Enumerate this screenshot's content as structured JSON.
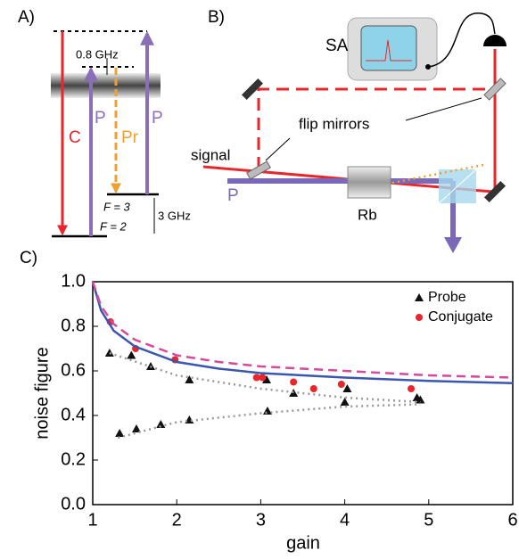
{
  "panel_a": {
    "label": "A)",
    "spacing": "0.8 GHz",
    "coupling": "C",
    "pump_left": "P",
    "probe": "Pr",
    "pump_right": "P",
    "upper_level": "F = 3",
    "lower_level": "F = 2",
    "splitting": "3 GHz"
  },
  "panel_b": {
    "label": "B)",
    "analyzer": "SA",
    "mirrors": "flip mirrors",
    "signal": "signal",
    "pump": "P",
    "cell": "Rb"
  },
  "chart_data": {
    "type": "scatter",
    "panel_label": "C)",
    "x_label": "gain",
    "y_label": "noise figure",
    "xlim": [
      1,
      6
    ],
    "xticks": [
      1,
      2,
      3,
      4,
      5,
      6
    ],
    "ylim": [
      0,
      1
    ],
    "yticks": [
      {
        "value": 0,
        "label": "0.0"
      },
      0.2,
      0.4,
      0.6,
      0.8,
      {
        "value": 1,
        "label": "1.0"
      }
    ],
    "legend": "top-right",
    "series": [
      {
        "name": "Probe",
        "color": "#111111",
        "marker": "triangle",
        "x": [
          1.2,
          1.46,
          1.69,
          2.15,
          3.07,
          3.39,
          4.03,
          4.0,
          4.86,
          4.9,
          1.32,
          1.52,
          1.81,
          2.15,
          3.08
        ],
        "values": [
          0.68,
          0.67,
          0.62,
          0.56,
          0.56,
          0.5,
          0.52,
          0.46,
          0.48,
          0.47,
          0.32,
          0.34,
          0.36,
          0.38,
          0.42
        ]
      },
      {
        "name": "Conjugate",
        "color": "#e8262b",
        "marker": "circle",
        "x": [
          1.21,
          1.51,
          1.98,
          2.95,
          3.02,
          3.39,
          3.63,
          3.96,
          4.79
        ],
        "values": [
          0.82,
          0.7,
          0.65,
          0.57,
          0.57,
          0.55,
          0.52,
          0.54,
          0.52
        ]
      },
      {
        "color": "#3a56b0",
        "marker": "solid",
        "x": [
          1,
          1.1,
          1.25,
          1.5,
          2,
          2.5,
          3,
          4,
          5,
          6
        ],
        "values": [
          1.0,
          0.87,
          0.78,
          0.71,
          0.64,
          0.61,
          0.59,
          0.57,
          0.555,
          0.545
        ]
      },
      {
        "color": "#d9489a",
        "marker": "dash",
        "x": [
          1,
          1.1,
          1.25,
          1.5,
          2,
          2.5,
          3,
          4,
          5,
          6
        ],
        "values": [
          1.0,
          0.89,
          0.81,
          0.74,
          0.67,
          0.64,
          0.62,
          0.6,
          0.58,
          0.57
        ]
      },
      {
        "color": "#999999",
        "marker": "dot",
        "x": [
          1.2,
          2,
          3,
          4,
          4.9
        ],
        "values": [
          0.68,
          0.58,
          0.52,
          0.48,
          0.46
        ]
      },
      {
        "color": "#999999",
        "marker": "dot",
        "x": [
          1.3,
          2,
          3,
          4,
          4.9
        ],
        "values": [
          0.3,
          0.37,
          0.41,
          0.44,
          0.45
        ]
      }
    ]
  }
}
